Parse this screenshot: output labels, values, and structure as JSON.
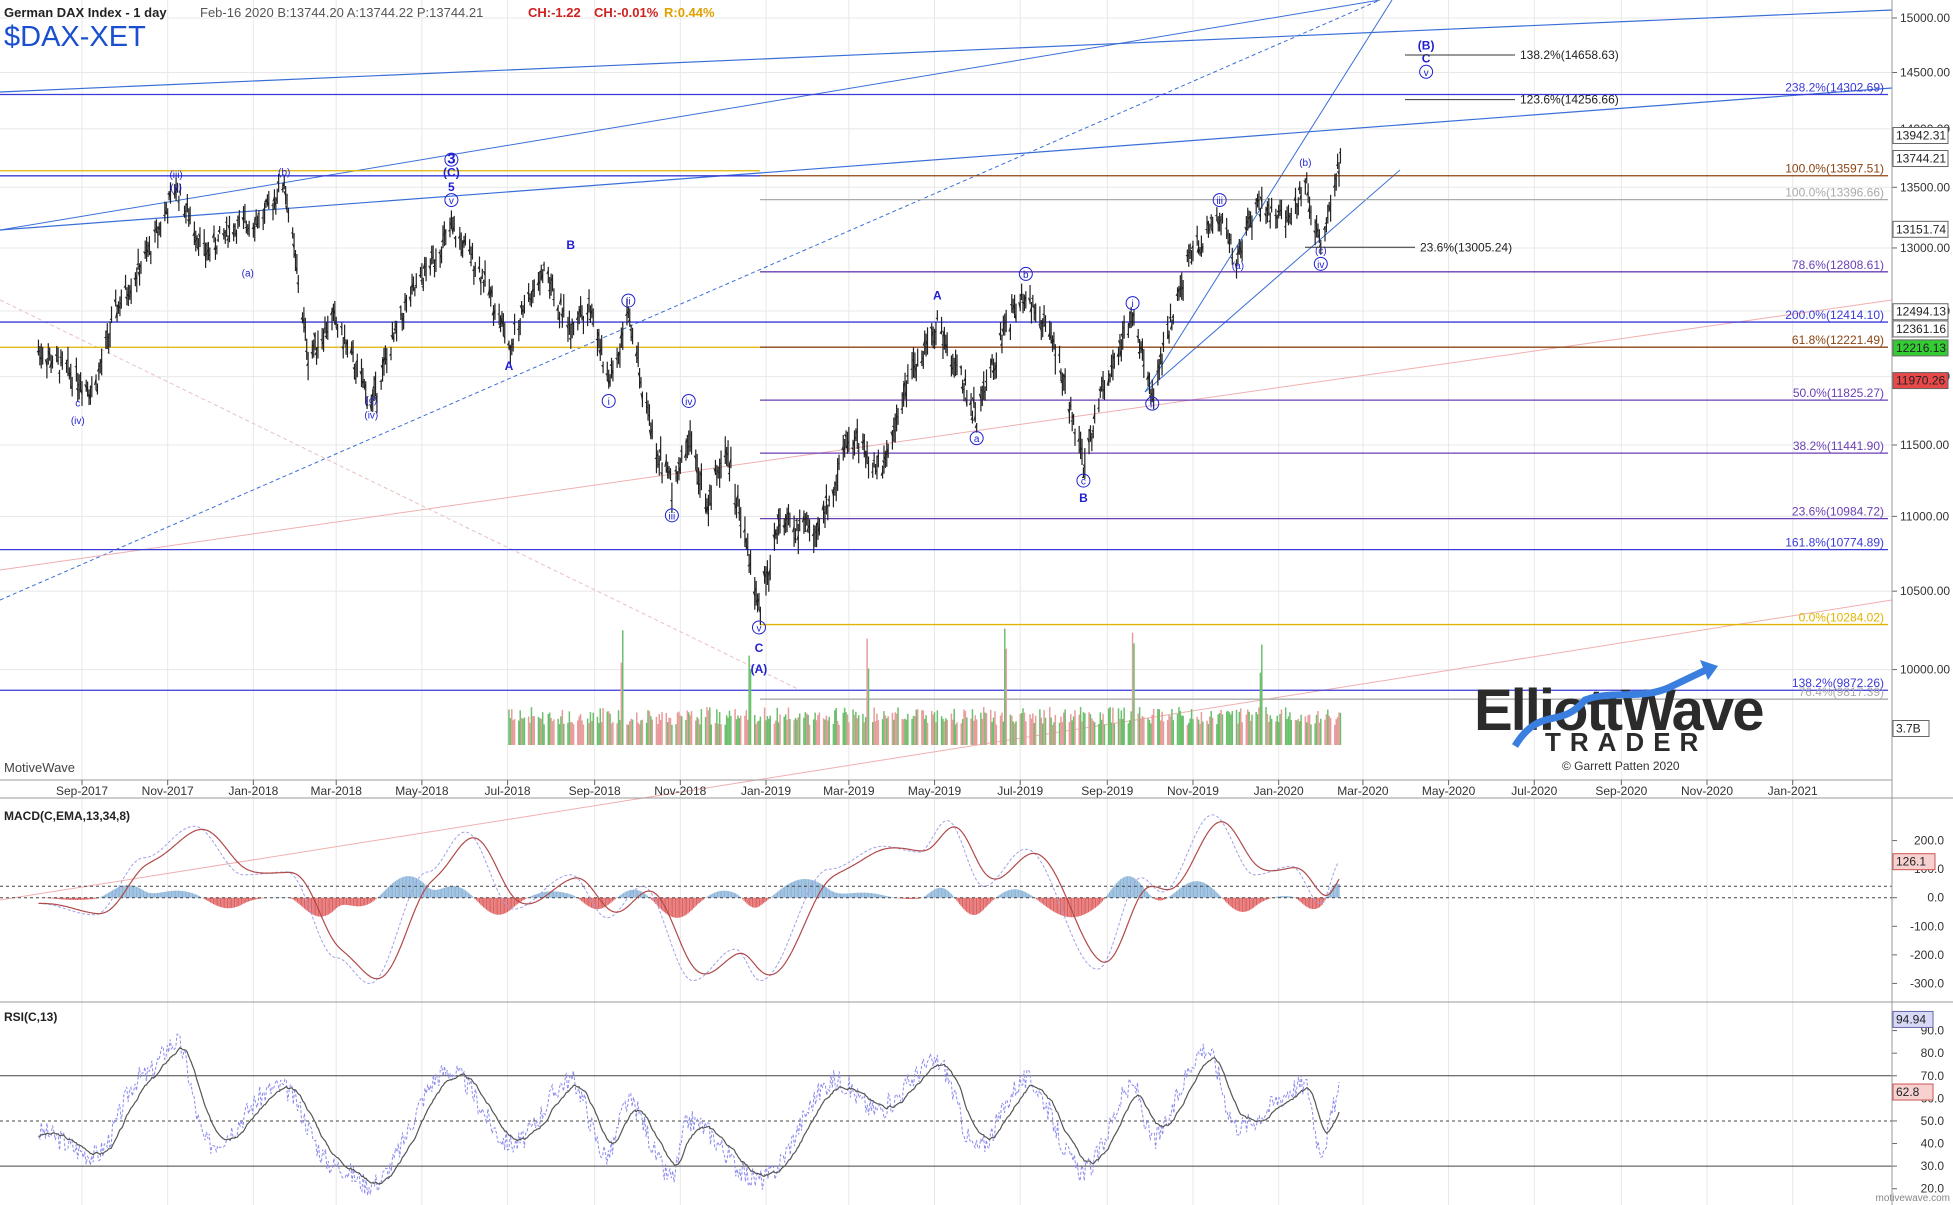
{
  "header": {
    "instrument": "German DAX Index - 1 day",
    "quote": "Feb-16 2020  B:13744.20  A:13744.22  P:13744.21",
    "change_abs": "CH:-1.22",
    "change_pct": "CH:-0.01%",
    "range": "R:0.44%",
    "symbol": "$DAX-XET"
  },
  "branding": {
    "platform": "MotiveWave",
    "logo_line1": "ElliottWave",
    "logo_line2": "TRADER",
    "credit": "© Garrett Patten 2020",
    "footer": "motivewave.com"
  },
  "colors": {
    "background": "#ffffff",
    "grid": "#e8e8e8",
    "wave_label": "#1f1fd0",
    "fib_blue": "#3a3ad8",
    "fib_purple": "#6a3fb5",
    "fib_gold": "#e0b400",
    "fib_brown": "#8b4513",
    "price_bar": "#222222",
    "volume_up": "#6cbf6c",
    "volume_down": "#e79b9b",
    "macd_line": "#b04a4a",
    "signal_line": "#a0a0e8",
    "hist_pos": "#8ab4d8",
    "hist_neg": "#e06060"
  },
  "chart_data": [
    {
      "type": "candlestick",
      "panel": "price",
      "x_axis_ticks": [
        "Sep-2017",
        "Nov-2017",
        "Jan-2018",
        "Mar-2018",
        "May-2018",
        "Jul-2018",
        "Sep-2018",
        "Nov-2018",
        "Jan-2019",
        "Mar-2019",
        "May-2019",
        "Jul-2019",
        "Sep-2019",
        "Nov-2019",
        "Jan-2020",
        "Mar-2020",
        "May-2020",
        "Jul-2020",
        "Sep-2020",
        "Nov-2020",
        "Jan-2021"
      ],
      "y_axis_ticks": [
        15000,
        14500,
        14000,
        13500,
        13000,
        12500,
        12000,
        11500,
        11000,
        10500,
        10000
      ],
      "ylim": [
        9500,
        15150
      ],
      "price_path": [
        [
          "2017-08-01",
          12200
        ],
        [
          "2017-08-20",
          12050
        ],
        [
          "2017-09-10",
          11900
        ],
        [
          "2017-09-25",
          12500
        ],
        [
          "2017-10-20",
          13000
        ],
        [
          "2017-11-07",
          13500
        ],
        [
          "2017-11-28",
          12950
        ],
        [
          "2017-12-15",
          13150
        ],
        [
          "2018-01-08",
          13250
        ],
        [
          "2018-01-23",
          13550
        ],
        [
          "2018-02-09",
          12150
        ],
        [
          "2018-02-27",
          12450
        ],
        [
          "2018-03-26",
          11800
        ],
        [
          "2018-04-20",
          12550
        ],
        [
          "2018-05-22",
          13150
        ],
        [
          "2018-06-10",
          12850
        ],
        [
          "2018-06-20",
          12600
        ],
        [
          "2018-07-02",
          12250
        ],
        [
          "2018-07-27",
          12850
        ],
        [
          "2018-08-15",
          12300
        ],
        [
          "2018-08-28",
          12550
        ],
        [
          "2018-09-11",
          11950
        ],
        [
          "2018-09-25",
          12450
        ],
        [
          "2018-10-11",
          11600
        ],
        [
          "2018-10-26",
          11200
        ],
        [
          "2018-11-07",
          11550
        ],
        [
          "2018-11-20",
          11100
        ],
        [
          "2018-12-04",
          11450
        ],
        [
          "2018-12-27",
          10380
        ],
        [
          "2019-01-10",
          10950
        ],
        [
          "2019-02-08",
          10900
        ],
        [
          "2019-03-01",
          11600
        ],
        [
          "2019-03-25",
          11300
        ],
        [
          "2019-04-12",
          11950
        ],
        [
          "2019-05-03",
          12400
        ],
        [
          "2019-05-31",
          11700
        ],
        [
          "2019-06-20",
          12350
        ],
        [
          "2019-07-05",
          12650
        ],
        [
          "2019-07-25",
          12250
        ],
        [
          "2019-08-15",
          11350
        ],
        [
          "2019-08-30",
          11950
        ],
        [
          "2019-09-19",
          12450
        ],
        [
          "2019-10-03",
          11850
        ],
        [
          "2019-10-30",
          12950
        ],
        [
          "2019-11-20",
          13250
        ],
        [
          "2019-12-03",
          12900
        ],
        [
          "2019-12-16",
          13350
        ],
        [
          "2019-12-27",
          13300
        ],
        [
          "2020-01-08",
          13200
        ],
        [
          "2020-01-20",
          13550
        ],
        [
          "2020-01-31",
          13000
        ],
        [
          "2020-02-14",
          13744
        ]
      ],
      "volume_spikes": [
        "2018-09-21",
        "2018-12-21",
        "2019-03-15",
        "2019-06-21",
        "2019-09-20",
        "2019-12-20"
      ],
      "wave_labels": [
        {
          "label": "c",
          "date": "2017-08-29",
          "price": 11780,
          "position": "below"
        },
        {
          "label": "(iv)",
          "date": "2017-08-29",
          "price": 11650,
          "position": "below"
        },
        {
          "label": "(iii)",
          "date": "2017-11-07",
          "price": 13580,
          "position": "above"
        },
        {
          "label": "(v)",
          "date": "2017-11-07",
          "price": 13470,
          "position": "above"
        },
        {
          "label": "(b)",
          "date": "2018-01-23",
          "price": 13600,
          "position": "above"
        },
        {
          "label": "(a)",
          "date": "2017-12-28",
          "price": 12770,
          "position": "below"
        },
        {
          "label": "3",
          "date": "2018-05-22",
          "price": 13700,
          "position": "above",
          "circled": true
        },
        {
          "label": "(C)",
          "date": "2018-05-22",
          "price": 13590,
          "position": "above"
        },
        {
          "label": "5",
          "date": "2018-05-22",
          "price": 13470,
          "position": "above"
        },
        {
          "label": "v",
          "date": "2018-05-22",
          "price": 13360,
          "position": "above",
          "circled": true
        },
        {
          "label": "(c)",
          "date": "2018-03-26",
          "price": 11800,
          "position": "below"
        },
        {
          "label": "(iv)",
          "date": "2018-03-26",
          "price": 11690,
          "position": "below"
        },
        {
          "label": "B",
          "date": "2018-08-15",
          "price": 12990,
          "position": "above"
        },
        {
          "label": "A",
          "date": "2018-07-02",
          "price": 12050,
          "position": "below"
        },
        {
          "label": "ii",
          "date": "2018-09-25",
          "price": 12550,
          "position": "above",
          "circled": true
        },
        {
          "label": "i",
          "date": "2018-09-11",
          "price": 11790,
          "position": "below",
          "circled": true
        },
        {
          "label": "iv",
          "date": "2018-11-07",
          "price": 11790,
          "position": "above",
          "circled": true
        },
        {
          "label": "iii",
          "date": "2018-10-26",
          "price": 10980,
          "position": "below",
          "circled": true
        },
        {
          "label": "v",
          "date": "2018-12-27",
          "price": 10240,
          "position": "below",
          "circled": true
        },
        {
          "label": "C",
          "date": "2018-12-27",
          "price": 10110,
          "position": "below"
        },
        {
          "label": "(A)",
          "date": "2018-12-27",
          "price": 9980,
          "position": "below"
        },
        {
          "label": "A",
          "date": "2019-05-03",
          "price": 12590,
          "position": "above"
        },
        {
          "label": "a",
          "date": "2019-05-31",
          "price": 11520,
          "position": "below",
          "circled": true
        },
        {
          "label": "b",
          "date": "2019-07-05",
          "price": 12760,
          "position": "above",
          "circled": true
        },
        {
          "label": "c",
          "date": "2019-08-15",
          "price": 11220,
          "position": "below",
          "circled": true
        },
        {
          "label": "B",
          "date": "2019-08-15",
          "price": 11100,
          "position": "below"
        },
        {
          "label": "i",
          "date": "2019-09-19",
          "price": 12530,
          "position": "above",
          "circled": true
        },
        {
          "label": "ii",
          "date": "2019-10-03",
          "price": 11770,
          "position": "below",
          "circled": true
        },
        {
          "label": "iii",
          "date": "2019-11-20",
          "price": 13360,
          "position": "above",
          "circled": true
        },
        {
          "label": "(a)",
          "date": "2019-12-03",
          "price": 12830,
          "position": "below"
        },
        {
          "label": "(b)",
          "date": "2020-01-20",
          "price": 13680,
          "position": "above"
        },
        {
          "label": "(c)",
          "date": "2020-01-31",
          "price": 12950,
          "position": "below"
        },
        {
          "label": "iv",
          "date": "2020-01-31",
          "price": 12840,
          "position": "below",
          "circled": true
        },
        {
          "label": "(B)",
          "date": "2020-04-15",
          "price": 14710,
          "position": "above"
        },
        {
          "label": "C",
          "date": "2020-04-15",
          "price": 14590,
          "position": "above"
        },
        {
          "label": "v",
          "date": "2020-04-15",
          "price": 14470,
          "position": "above",
          "circled": true
        }
      ],
      "fib_levels": [
        {
          "label": "238.2%(14302.69)",
          "price": 14302.69,
          "color": "blue",
          "full_width": true
        },
        {
          "label": "100.0%(13597.51)",
          "price": 13597.51,
          "color": "brown"
        },
        {
          "label": "100.0%(13396.66)",
          "price": 13396.66,
          "color": "gray"
        },
        {
          "label": "78.6%(12808.61)",
          "price": 12808.61,
          "color": "purple"
        },
        {
          "label": "200.0%(12414.10)",
          "price": 12414.1,
          "color": "blue",
          "full_width": true
        },
        {
          "label": "61.8%(12221.49)",
          "price": 12221.49,
          "color": "brown"
        },
        {
          "label": "50.0%(11825.27)",
          "price": 11825.27,
          "color": "purple"
        },
        {
          "label": "38.2%(11441.90)",
          "price": 11441.9,
          "color": "purple"
        },
        {
          "label": "23.6%(10984.72)",
          "price": 10984.72,
          "color": "purple"
        },
        {
          "label": "161.8%(10774.89)",
          "price": 10774.89,
          "color": "blue",
          "full_width": true
        },
        {
          "label": "0.0%(10284.02)",
          "price": 10284.02,
          "color": "gold"
        },
        {
          "label": "138.2%(9872.26)",
          "price": 9872.26,
          "color": "blue",
          "full_width": true
        },
        {
          "label": "76.4%(9817.39)",
          "price": 9817.39,
          "color": "gray"
        }
      ],
      "callouts": [
        {
          "label": "138.2%(14658.63)",
          "price": 14658.63
        },
        {
          "label": "123.6%(14256.66)",
          "price": 14256.66
        },
        {
          "label": "23.6%(13005.24)",
          "price": 13005.24
        }
      ],
      "price_tags": [
        {
          "label": "13942.31",
          "price": 13942.31
        },
        {
          "label": "13744.21",
          "price": 13744.21
        },
        {
          "label": "13151.74",
          "price": 13151.74
        },
        {
          "label": "12494.13",
          "price": 12494.13
        },
        {
          "label": "12361.16",
          "price": 12361.16
        },
        {
          "label": "12216.13",
          "price": 12216.13,
          "color": "green"
        },
        {
          "label": "11970.26",
          "price": 11970.26,
          "color": "red"
        }
      ],
      "volume_tags": [
        {
          "label": "3.7B",
          "price": 9640
        }
      ]
    },
    {
      "type": "line",
      "panel": "macd",
      "title": "MACD(C,EMA,13,34,8)",
      "y_axis_ticks": [
        200,
        100,
        0,
        -100,
        -200,
        -300
      ],
      "ylim": [
        -330,
        300
      ],
      "last_value": "126.1",
      "extremes": [
        [
          "2017-08-01",
          -20
        ],
        [
          "2017-09-10",
          -60
        ],
        [
          "2017-10-15",
          140
        ],
        [
          "2017-11-20",
          250
        ],
        [
          "2017-12-25",
          80
        ],
        [
          "2018-01-25",
          90
        ],
        [
          "2018-03-01",
          -210
        ],
        [
          "2018-03-25",
          -300
        ],
        [
          "2018-05-05",
          90
        ],
        [
          "2018-06-01",
          230
        ],
        [
          "2018-07-05",
          -40
        ],
        [
          "2018-08-15",
          80
        ],
        [
          "2018-09-10",
          -70
        ],
        [
          "2018-10-05",
          40
        ],
        [
          "2018-11-10",
          -290
        ],
        [
          "2018-12-10",
          -180
        ],
        [
          "2018-12-28",
          -290
        ],
        [
          "2019-02-15",
          100
        ],
        [
          "2019-03-25",
          180
        ],
        [
          "2019-04-20",
          160
        ],
        [
          "2019-05-10",
          270
        ],
        [
          "2019-06-05",
          40
        ],
        [
          "2019-07-05",
          170
        ],
        [
          "2019-08-25",
          -250
        ],
        [
          "2019-09-25",
          70
        ],
        [
          "2019-10-10",
          20
        ],
        [
          "2019-11-15",
          290
        ],
        [
          "2019-12-15",
          80
        ],
        [
          "2020-01-10",
          110
        ],
        [
          "2020-01-31",
          -20
        ],
        [
          "2020-02-14",
          126
        ]
      ]
    },
    {
      "type": "line",
      "panel": "rsi",
      "title": "RSI(C,13)",
      "y_axis_ticks": [
        90,
        80,
        70,
        60,
        50,
        40,
        30,
        20
      ],
      "ylim": [
        15,
        100
      ],
      "last_value": "62.8",
      "upper_band_value": "94.94",
      "levels": [
        70,
        50,
        30
      ],
      "extremes": [
        [
          "2017-08-01",
          45
        ],
        [
          "2017-09-10",
          35
        ],
        [
          "2017-10-15",
          70
        ],
        [
          "2017-11-07",
          85
        ],
        [
          "2017-11-30",
          40
        ],
        [
          "2018-01-20",
          65
        ],
        [
          "2018-03-01",
          30
        ],
        [
          "2018-03-25",
          22
        ],
        [
          "2018-05-20",
          72
        ],
        [
          "2018-07-05",
          40
        ],
        [
          "2018-08-15",
          68
        ],
        [
          "2018-09-10",
          35
        ],
        [
          "2018-09-25",
          58
        ],
        [
          "2018-10-26",
          25
        ],
        [
          "2018-11-07",
          50
        ],
        [
          "2018-12-27",
          24
        ],
        [
          "2019-02-20",
          68
        ],
        [
          "2019-03-20",
          55
        ],
        [
          "2019-05-03",
          76
        ],
        [
          "2019-05-31",
          38
        ],
        [
          "2019-07-05",
          68
        ],
        [
          "2019-08-15",
          28
        ],
        [
          "2019-09-20",
          65
        ],
        [
          "2019-10-03",
          42
        ],
        [
          "2019-11-10",
          82
        ],
        [
          "2019-12-03",
          48
        ],
        [
          "2020-01-20",
          66
        ],
        [
          "2020-01-31",
          38
        ],
        [
          "2020-02-14",
          62.8
        ]
      ]
    }
  ]
}
